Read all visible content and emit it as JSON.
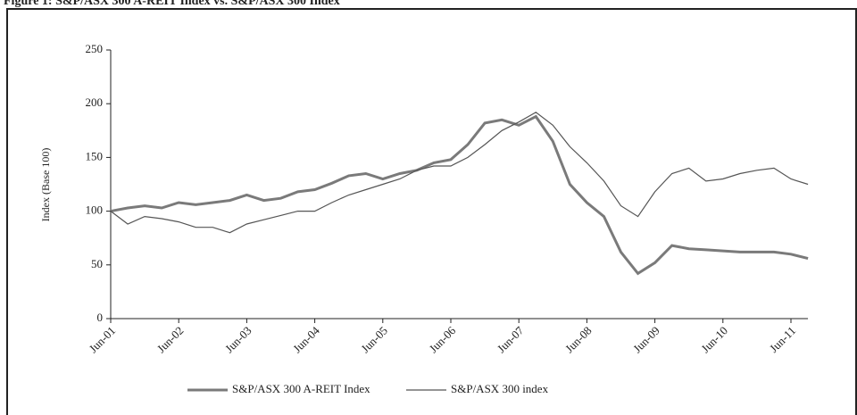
{
  "chart_data": {
    "type": "line",
    "title": "Figure 1: S&P/ASX 300 A-REIT Index vs. S&P/ASX 300 Index",
    "y_label": "Index (Base 100)",
    "x": [
      "2001-06",
      "2001-09",
      "2001-12",
      "2002-03",
      "2002-06",
      "2002-09",
      "2002-12",
      "2003-03",
      "2003-06",
      "2003-09",
      "2003-12",
      "2004-03",
      "2004-06",
      "2004-09",
      "2004-12",
      "2005-03",
      "2005-06",
      "2005-09",
      "2005-12",
      "2006-03",
      "2006-06",
      "2006-09",
      "2006-12",
      "2007-03",
      "2007-06",
      "2007-09",
      "2007-12",
      "2008-03",
      "2008-06",
      "2008-09",
      "2008-12",
      "2009-03",
      "2009-06",
      "2009-09",
      "2009-12",
      "2010-03",
      "2010-06",
      "2010-09",
      "2010-12",
      "2011-03",
      "2011-06",
      "2011-09"
    ],
    "series": [
      {
        "name": "S&P/ASX 300 A-REIT Index",
        "color": "#7a7a7a",
        "values": [
          100,
          103,
          105,
          103,
          108,
          106,
          108,
          110,
          115,
          110,
          112,
          118,
          120,
          126,
          133,
          135,
          130,
          135,
          138,
          145,
          148,
          162,
          182,
          185,
          180,
          188,
          165,
          125,
          108,
          95,
          62,
          42,
          52,
          68,
          65,
          64,
          63,
          62,
          62,
          62,
          60,
          56
        ]
      },
      {
        "name": "S&P/ASX 300 index",
        "color": "#555555",
        "values": [
          100,
          88,
          95,
          93,
          90,
          85,
          85,
          80,
          88,
          92,
          96,
          100,
          100,
          108,
          115,
          120,
          125,
          130,
          138,
          142,
          142,
          150,
          162,
          175,
          183,
          192,
          180,
          160,
          145,
          128,
          105,
          95,
          118,
          135,
          140,
          128,
          130,
          135,
          138,
          140,
          130,
          125
        ]
      }
    ],
    "ylim": [
      0,
      250
    ],
    "yticks": [
      0,
      50,
      100,
      150,
      200,
      250
    ],
    "xticks": [
      {
        "value": "2001-06",
        "label": "Jun-01"
      },
      {
        "value": "2002-06",
        "label": "Jun-02"
      },
      {
        "value": "2003-06",
        "label": "Jun-03"
      },
      {
        "value": "2004-06",
        "label": "Jun-04"
      },
      {
        "value": "2005-06",
        "label": "Jun-05"
      },
      {
        "value": "2006-06",
        "label": "Jun-06"
      },
      {
        "value": "2007-06",
        "label": "Jun-07"
      },
      {
        "value": "2008-06",
        "label": "Jun-08"
      },
      {
        "value": "2009-06",
        "label": "Jun-09"
      },
      {
        "value": "2010-06",
        "label": "Jun-10"
      },
      {
        "value": "2011-06",
        "label": "Jun-11"
      }
    ]
  }
}
